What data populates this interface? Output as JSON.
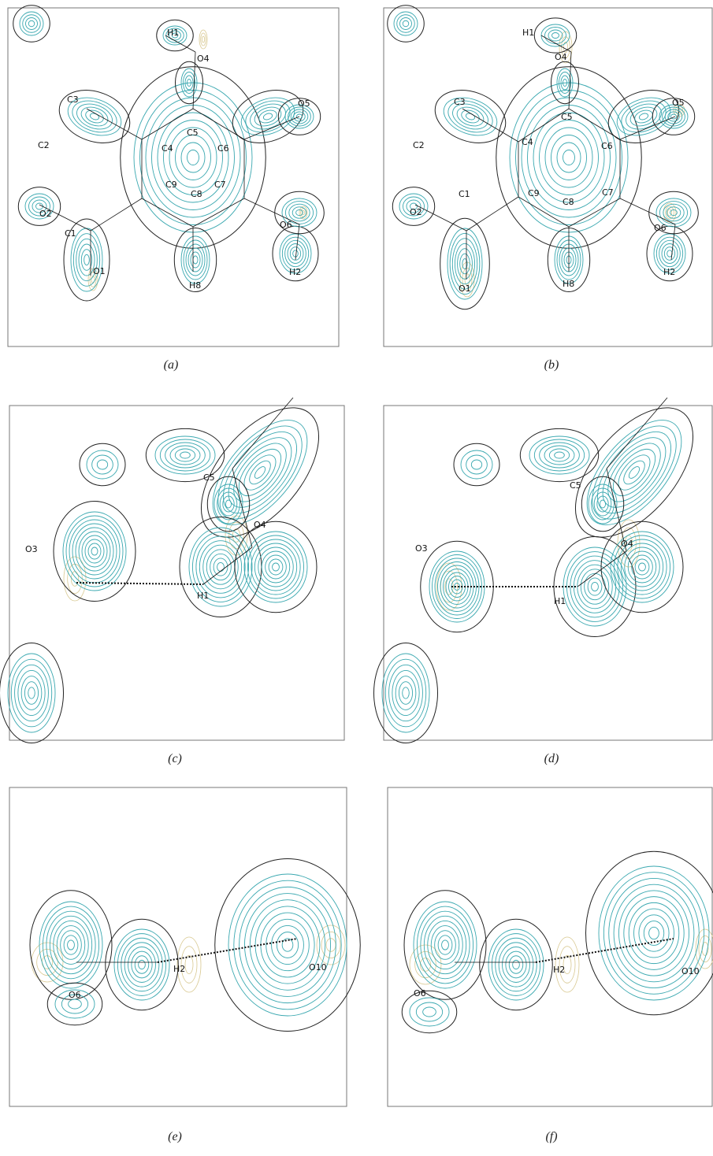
{
  "panels": [
    {
      "caption": "(a)",
      "atoms": [
        "H1",
        "O4",
        "C3",
        "O5",
        "C5",
        "C6",
        "C2",
        "C4",
        "C9",
        "C8",
        "C7",
        "O2",
        "C1",
        "O6",
        "O1",
        "H8",
        "H2"
      ]
    },
    {
      "caption": "(b)",
      "atoms": [
        "H1",
        "O4",
        "C3",
        "O5",
        "C5",
        "C6",
        "C2",
        "C4",
        "C9",
        "C8",
        "C7",
        "O2",
        "C1",
        "O6",
        "O1",
        "H8",
        "H2"
      ]
    },
    {
      "caption": "(c)",
      "atoms": [
        "C5",
        "O4",
        "O3",
        "H1"
      ]
    },
    {
      "caption": "(d)",
      "atoms": [
        "C5",
        "O4",
        "O3",
        "H1"
      ]
    },
    {
      "caption": "(e)",
      "atoms": [
        "O6",
        "H2",
        "O10"
      ]
    },
    {
      "caption": "(f)",
      "atoms": [
        "O6",
        "H2",
        "O10"
      ]
    }
  ]
}
